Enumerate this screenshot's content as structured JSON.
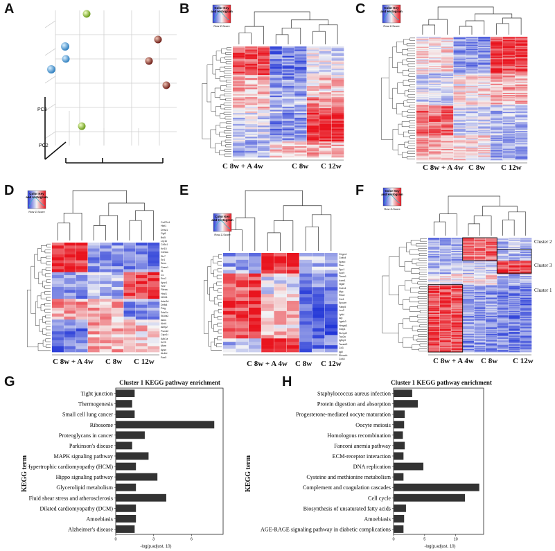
{
  "panels": {
    "A": {
      "letter": "A",
      "axis_pc3": "PC3",
      "axis_pc2": "PC2"
    },
    "B": {
      "letter": "B",
      "key_title_1": "Color Key",
      "key_title_2": "and Histogram",
      "key_xlabel": "Row Z-Score",
      "groups": [
        "C 8w + A 4w",
        "C 8w",
        "C 12w"
      ]
    },
    "C": {
      "letter": "C",
      "key_title_1": "Color Key",
      "key_title_2": "and Histogram",
      "key_xlabel": "Row Z-Score",
      "groups": [
        "C 8w + A 4w",
        "C 8w",
        "C 12w"
      ]
    },
    "D": {
      "letter": "D",
      "key_title_1": "Color Key",
      "key_title_2": "and Histogram",
      "key_xlabel": "Row Z-Score",
      "groups": [
        "C 8w + A 4w",
        "C 8w",
        "C 12w"
      ],
      "genes": [
        "Col27a1",
        "Hist1",
        "Dmw1",
        "Ggt1",
        "Bsl5",
        "Lrp1b",
        "Cd5c1",
        "Krt15",
        "Cdh6a",
        "Slc7",
        "Sn1",
        "Sncs",
        "Gram1",
        "Il1",
        "Cc",
        "Enc2",
        "Apsr1",
        "Tcf2",
        "Fliesa",
        "Hcsl1",
        "Nr5h1",
        "Adsr3d",
        "Dnfk4",
        "Psig",
        "Sdsl1c",
        "St1ifa2",
        "Akbs",
        "Ahd4",
        "Akfip2",
        "Psmd2",
        "Cspr1t",
        "Adk1a",
        "Kr25",
        "Msre",
        "Apsn",
        "Ah4fd",
        "Pax5"
      ]
    },
    "E": {
      "letter": "E",
      "key_title_1": "Color Key",
      "key_title_2": "and Histogram",
      "key_xlabel": "Row Z-Score",
      "groups": [
        "C 8w + A 4w",
        "C 8w",
        "C 12w"
      ],
      "genes": [
        "Chgm1",
        "Colfa4",
        "Sparc",
        "Ptau",
        "Spp1",
        "Sox9",
        "Timm1",
        "Icam1",
        "Ngsfr",
        "Golm1",
        "Myc",
        "Rbcd",
        "Cdr1",
        "Epcam",
        "Fabp5",
        "Lcn2",
        "Lyfld",
        "Afp",
        "Lgals3",
        "Hmgal1",
        "Gstp1",
        "Slc1pt2",
        "Top2a",
        "Igfbp3",
        "Tacstd2",
        "Cd3",
        "Igf2",
        "Ehhadh",
        "Cd44"
      ]
    },
    "F": {
      "letter": "F",
      "key_title_1": "Color Key",
      "key_title_2": "and Histogram",
      "key_xlabel": "Row Z-Score",
      "groups": [
        "C 8w + A 4w",
        "C 8w",
        "C 12w"
      ],
      "clusters": [
        "Cluster 2",
        "Cluster 3",
        "Cluster 1"
      ]
    },
    "G": {
      "letter": "G",
      "title": "Cluster 1 KEGG pathway enrichment",
      "ylabel": "KEGG term",
      "xlabel": "-log(p.adjust, 10)"
    },
    "H": {
      "letter": "H",
      "title": "Cluster 1 KEGG pathway enrichment",
      "ylabel": "KEGG term",
      "xlabel": "-log(p.adjust, 10)"
    }
  },
  "colors": {
    "up": "#e8141e",
    "down": "#2a3cd6",
    "mid": "#f4f4f4",
    "bar": "#333333",
    "pca_blue": "#4a9fd8",
    "pca_green": "#8cbf2c",
    "pca_red": "#8a2a22"
  },
  "chart_data": [
    {
      "type": "scatter",
      "panel": "A",
      "xlabel": "",
      "ylabel": "PC3",
      "series": [
        {
          "group": "blue",
          "count": 3
        },
        {
          "group": "green",
          "count": 2
        },
        {
          "group": "red",
          "count": 3
        }
      ]
    },
    {
      "type": "bar",
      "panel": "G",
      "orientation": "horizontal",
      "title": "Cluster 1 KEGG pathway enrichment",
      "xlabel": "-log(p.adjust, 10)",
      "ylabel": "KEGG term",
      "xticks": [
        "0",
        "3",
        "6"
      ],
      "xlim": [
        0,
        8.5
      ],
      "categories": [
        "Tight junction",
        "Thermogenesis",
        "Small cell lung cancer",
        "Ribosome",
        "Proteoglycans in cancer",
        "Parkinson's disease",
        "MAPK signaling pathway",
        "Hypertrophic cardiomyopathy (HCM)",
        "Hippo signaling pathway",
        "Glycerolipid metabolism",
        "Fluid shear stress and atherosclerosis",
        "Dilated cardiomyopathy (DCM)",
        "Amoebiasis",
        "Alzheimer's disease"
      ],
      "values": [
        1.5,
        1.3,
        1.5,
        7.8,
        2.3,
        1.3,
        2.6,
        1.6,
        3.3,
        1.6,
        4.0,
        1.6,
        1.6,
        1.5
      ]
    },
    {
      "type": "bar",
      "panel": "H",
      "orientation": "horizontal",
      "title": "Cluster 1 KEGG pathway enrichment",
      "xlabel": "-log(p.adjust, 10)",
      "ylabel": "KEGG term",
      "xticks": [
        "0",
        "5",
        "10"
      ],
      "xlim": [
        0,
        14.5
      ],
      "categories": [
        "Staphylococcus aureus infection",
        "Protein digestion and absorption",
        "Progesterone-mediated oocyte maturation",
        "Oocyte meiosis",
        "Homologous recombination",
        "Fanconi anemia pathway",
        "ECM-receptor interaction",
        "DNA replication",
        "Cysteine and methionine metabolism",
        "Complement and coagulation cascades",
        "Cell cycle",
        "Biosynthesis of unsaturated fatty acids",
        "Amoebiasis",
        "AGE-RAGE signaling pathway in diabetic complications"
      ],
      "values": [
        3.0,
        3.9,
        1.8,
        1.7,
        1.5,
        1.8,
        1.6,
        4.8,
        1.6,
        13.8,
        11.5,
        2.0,
        1.7,
        1.6
      ]
    },
    {
      "type": "heatmap",
      "panel": "B",
      "columns": 9,
      "column_groups": [
        "C 8w + A 4w",
        "C 8w",
        "C 12w"
      ]
    },
    {
      "type": "heatmap",
      "panel": "C",
      "columns": 9,
      "column_groups": [
        "C 8w + A 4w",
        "C 8w",
        "C 12w"
      ]
    },
    {
      "type": "heatmap",
      "panel": "D",
      "columns": 9,
      "column_groups": [
        "C 8w + A 4w",
        "C 8w",
        "C 12w"
      ]
    },
    {
      "type": "heatmap",
      "panel": "E",
      "columns": 9,
      "column_groups": [
        "C 8w + A 4w",
        "C 8w",
        "C 12w"
      ]
    },
    {
      "type": "heatmap",
      "panel": "F",
      "columns": 9,
      "column_groups": [
        "C 8w + A 4w",
        "C 8w",
        "C 12w"
      ]
    }
  ]
}
